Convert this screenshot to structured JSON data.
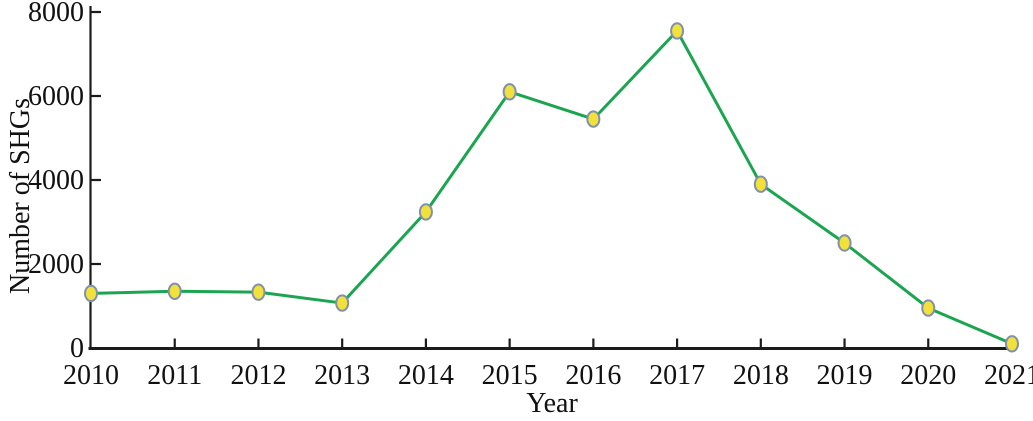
{
  "figure": {
    "background": "#ffffff"
  },
  "chart_data": {
    "type": "line",
    "title": "",
    "xlabel": "Year",
    "ylabel": "Number of SHGs",
    "x": [
      2010,
      2011,
      2012,
      2013,
      2014,
      2015,
      2016,
      2017,
      2018,
      2019,
      2020,
      2021
    ],
    "series": [
      {
        "name": "Number of SHGs",
        "values": [
          1300,
          1350,
          1330,
          1070,
          3240,
          6100,
          5450,
          7550,
          3900,
          2500,
          950,
          100
        ]
      }
    ],
    "xlim": [
      2010,
      2021
    ],
    "ylim": [
      0,
      8000
    ],
    "yticks": [
      0,
      2000,
      4000,
      6000,
      8000
    ],
    "xticklabels": [
      "2010",
      "2011",
      "2012",
      "2013",
      "2014",
      "2015",
      "2016",
      "2017",
      "2018",
      "2019",
      "2020",
      "2021"
    ],
    "yticklabels": [
      "0",
      "2000",
      "4000",
      "6000",
      "8000"
    ],
    "grid": false,
    "legend": "none",
    "styles": {
      "line_color": "#1ca550",
      "marker_shape": "ellipse",
      "marker_fill": "#f2e13b",
      "marker_stroke": "#8090ad",
      "axis_color": "#1b1b1b",
      "text_color": "#111111"
    }
  }
}
